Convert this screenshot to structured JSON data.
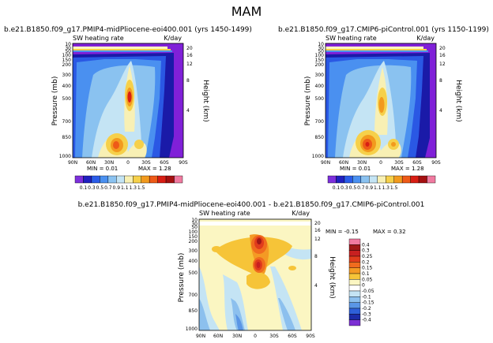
{
  "chart_data": [
    {
      "type": "heatmap",
      "title": "b.e21.B1850.f09_g17.PMIP4-midPliocene-eoi400.001 (yrs 1450-1499)",
      "subtitle": "SW heating rate",
      "units": "K/day",
      "xlabel": "",
      "ylabel": "Pressure (mb)",
      "y2label": "Height (km)",
      "x_ticks": [
        "90N",
        "60N",
        "30N",
        "0",
        "30S",
        "60S",
        "90S"
      ],
      "y_ticks": [
        "10",
        "30",
        "50",
        "100",
        "150",
        "200",
        "300",
        "400",
        "500",
        "700",
        "850",
        "1000"
      ],
      "y2_ticks": [
        "20",
        "16",
        "12",
        "8",
        "4"
      ],
      "min_label": "MIN = 0.01",
      "max_label": "MAX = 1.28",
      "contour_levels": [
        0.1,
        0.3,
        0.5,
        0.7,
        0.9,
        1.1,
        1.3,
        1.5
      ],
      "features": [
        {
          "lat": 5,
          "p": 480,
          "value": 1.2
        },
        {
          "lat": 25,
          "p": 860,
          "value": 1.1
        },
        {
          "lat": 0,
          "p": 860,
          "value": 0.9
        }
      ]
    },
    {
      "type": "heatmap",
      "title": "b.e21.B1850.f09_g17.CMIP6-piControl.001 (yrs 1150-1199)",
      "subtitle": "SW heating rate",
      "units": "K/day",
      "xlabel": "",
      "ylabel": "Pressure (mb)",
      "y2label": "Height (km)",
      "x_ticks": [
        "90N",
        "60N",
        "30N",
        "0",
        "30S",
        "60S",
        "90S"
      ],
      "y_ticks": [
        "10",
        "30",
        "50",
        "100",
        "150",
        "200",
        "300",
        "400",
        "500",
        "700",
        "850",
        "1000"
      ],
      "y2_ticks": [
        "20",
        "16",
        "12",
        "8",
        "4"
      ],
      "min_label": "MIN = 0.01",
      "max_label": "MAX = 1.28",
      "contour_levels": [
        0.1,
        0.3,
        0.5,
        0.7,
        0.9,
        1.1,
        1.3,
        1.5
      ],
      "features": [
        {
          "lat": 5,
          "p": 500,
          "value": 1.0
        },
        {
          "lat": 20,
          "p": 860,
          "value": 1.3
        },
        {
          "lat": 0,
          "p": 860,
          "value": 0.9
        }
      ]
    },
    {
      "type": "heatmap",
      "title": "b.e21.B1850.f09_g17.PMIP4-midPliocene-eoi400.001 - b.e21.B1850.f09_g17.CMIP6-piControl.001",
      "subtitle": "SW heating rate",
      "units": "K/day",
      "xlabel": "",
      "ylabel": "Pressure (mb)",
      "y2label": "Height (km)",
      "x_ticks": [
        "90N",
        "60N",
        "30N",
        "0",
        "30S",
        "60S",
        "90S"
      ],
      "y_ticks": [
        "10",
        "30",
        "50",
        "100",
        "150",
        "200",
        "300",
        "400",
        "500",
        "700",
        "850",
        "1000"
      ],
      "y2_ticks": [
        "20",
        "16",
        "12",
        "8",
        "4"
      ],
      "min_label": "MIN = -0.15",
      "max_label": "MAX = 0.32",
      "contour_levels": [
        0.4,
        0.3,
        0.25,
        0.2,
        0.15,
        0.1,
        0.05,
        0,
        -0.05,
        -0.1,
        -0.15,
        -0.2,
        -0.3,
        -0.4
      ],
      "features": [
        {
          "lat": -5,
          "p": 200,
          "value": 0.3
        },
        {
          "lat": -5,
          "p": 400,
          "value": 0.3
        }
      ]
    }
  ],
  "figure": {
    "title": "MAM",
    "colors": {
      "abs_bar": [
        "#7d2fdc",
        "#2020c0",
        "#2a5ce8",
        "#4a90f0",
        "#8ac2f0",
        "#c4e4f4",
        "#f8f0b4",
        "#f6d04a",
        "#f29a1e",
        "#ee5a18",
        "#d81e14",
        "#a41010",
        "#f07aa0"
      ],
      "abs_labels": [
        "0.1",
        "0.3",
        "0.5",
        "0.7",
        "0.9",
        "1.1",
        "1.3",
        "1.5"
      ],
      "diff_bar": [
        "#f07aa0",
        "#a01818",
        "#c82020",
        "#e03c1c",
        "#f06c1e",
        "#f49a24",
        "#f6c438",
        "#fbf6c2",
        "#ffffff",
        "#c4e4f4",
        "#8cc0ee",
        "#5a96e6",
        "#2e60d8",
        "#1c2ca8",
        "#7c30d4"
      ],
      "diff_labels": [
        "0.4",
        "0.3",
        "0.25",
        "0.2",
        "0.15",
        "0.1",
        "0.05",
        "0",
        "-0.05",
        "-0.1",
        "-0.15",
        "-0.2",
        "-0.3",
        "-0.4"
      ]
    }
  }
}
